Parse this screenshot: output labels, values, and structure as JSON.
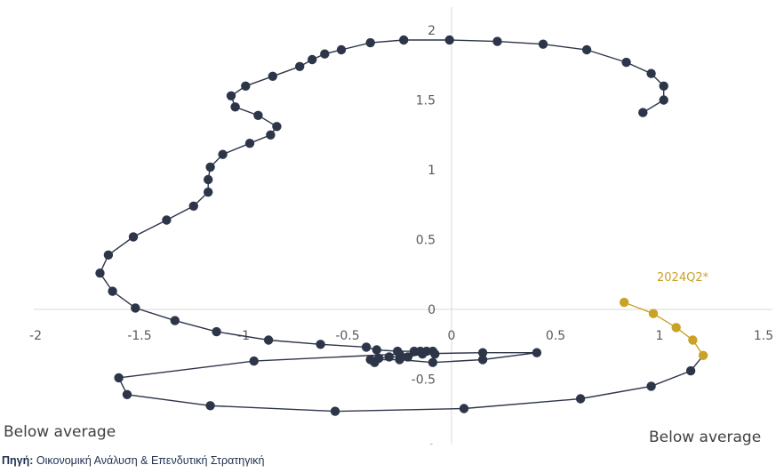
{
  "chart_data": {
    "type": "scatter",
    "title": "",
    "xlabel": "",
    "ylabel": "",
    "xlim": [
      -2,
      1.5
    ],
    "ylim": [
      -1,
      2
    ],
    "x_ticks": [
      "-2",
      "-1.5",
      "-1",
      "-0.5",
      "0",
      "0.5",
      "1",
      "1.5"
    ],
    "y_ticks": [
      "-1",
      "-0.5",
      "0",
      "0.5",
      "1",
      "1.5",
      "2"
    ],
    "grid": false,
    "colors": {
      "main": "#2d3549",
      "highlight": "#c9a227",
      "axis": "#d9d9d9"
    },
    "series": [
      {
        "color": "#2d3549",
        "points": [
          [
            0.92,
            1.41
          ],
          [
            1.02,
            1.5
          ],
          [
            1.02,
            1.6
          ],
          [
            0.96,
            1.69
          ],
          [
            0.84,
            1.77
          ],
          [
            0.65,
            1.86
          ],
          [
            0.44,
            1.9
          ],
          [
            0.22,
            1.92
          ],
          [
            -0.01,
            1.93
          ],
          [
            -0.23,
            1.93
          ],
          [
            -0.39,
            1.91
          ],
          [
            -0.53,
            1.86
          ],
          [
            -0.61,
            1.83
          ],
          [
            -0.67,
            1.79
          ],
          [
            -0.73,
            1.74
          ],
          [
            -0.86,
            1.67
          ],
          [
            -0.99,
            1.6
          ],
          [
            -1.06,
            1.53
          ],
          [
            -1.04,
            1.45
          ],
          [
            -0.93,
            1.39
          ],
          [
            -0.84,
            1.31
          ],
          [
            -0.87,
            1.25
          ],
          [
            -0.97,
            1.19
          ],
          [
            -1.1,
            1.11
          ],
          [
            -1.16,
            1.02
          ],
          [
            -1.17,
            0.93
          ],
          [
            -1.17,
            0.84
          ],
          [
            -1.24,
            0.74
          ],
          [
            -1.37,
            0.64
          ],
          [
            -1.53,
            0.52
          ],
          [
            -1.65,
            0.39
          ],
          [
            -1.69,
            0.26
          ],
          [
            -1.63,
            0.13
          ],
          [
            -1.52,
            0.01
          ],
          [
            -1.33,
            -0.08
          ],
          [
            -1.13,
            -0.16
          ],
          [
            -0.88,
            -0.22
          ],
          [
            -0.63,
            -0.25
          ],
          [
            -0.41,
            -0.27
          ],
          [
            -0.36,
            -0.29
          ],
          [
            -0.26,
            -0.3
          ],
          [
            -0.18,
            -0.3
          ],
          [
            -0.12,
            -0.3
          ],
          [
            -0.15,
            -0.3
          ],
          [
            -0.09,
            -0.3
          ],
          [
            -0.08,
            -0.32
          ],
          [
            -0.14,
            -0.32
          ],
          [
            -0.21,
            -0.34
          ],
          [
            -0.3,
            -0.34
          ],
          [
            -0.35,
            -0.35
          ],
          [
            -0.37,
            -0.38
          ],
          [
            -0.39,
            -0.36
          ],
          [
            -0.25,
            -0.36
          ],
          [
            -0.09,
            -0.38
          ],
          [
            0.15,
            -0.36
          ],
          [
            0.41,
            -0.31
          ],
          [
            0.15,
            -0.31
          ],
          [
            -0.25,
            -0.32
          ],
          [
            -0.95,
            -0.37
          ],
          [
            -1.6,
            -0.49
          ],
          [
            -1.56,
            -0.61
          ],
          [
            -1.16,
            -0.69
          ],
          [
            -0.56,
            -0.73
          ],
          [
            0.06,
            -0.71
          ],
          [
            0.62,
            -0.64
          ],
          [
            0.96,
            -0.55
          ],
          [
            1.15,
            -0.44
          ]
        ]
      },
      {
        "color": "#c9a227",
        "points": [
          [
            1.21,
            -0.33
          ],
          [
            1.16,
            -0.22
          ],
          [
            1.08,
            -0.13
          ],
          [
            0.97,
            -0.03
          ],
          [
            0.83,
            0.05
          ]
        ]
      }
    ],
    "annotations": [
      {
        "text": "2024Q2*",
        "color": "#c9a227"
      }
    ]
  },
  "labels": {
    "bottom_left": "Below average",
    "bottom_right": "Below average"
  },
  "source": {
    "prefix": "Πηγή:",
    "text": "Οικονομική Ανάλυση & Επενδυτική Στρατηγική"
  }
}
